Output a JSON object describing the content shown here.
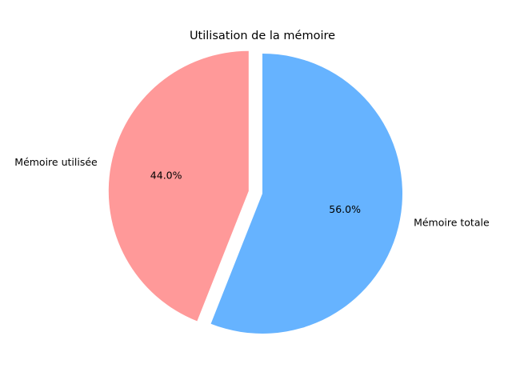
{
  "chart_data": {
    "type": "pie",
    "title": "Utilisation de la mémoire",
    "labels": [
      "Mémoire utilisée",
      "Mémoire totale"
    ],
    "values": [
      44.0,
      56.0
    ],
    "percent_labels": [
      "44.0%",
      "56.0%"
    ],
    "colors": [
      "#ff9999",
      "#66b3ff"
    ],
    "exploded": [
      true,
      false
    ],
    "start_angle_deg": 90,
    "counterclockwise": true,
    "legend": "none"
  }
}
